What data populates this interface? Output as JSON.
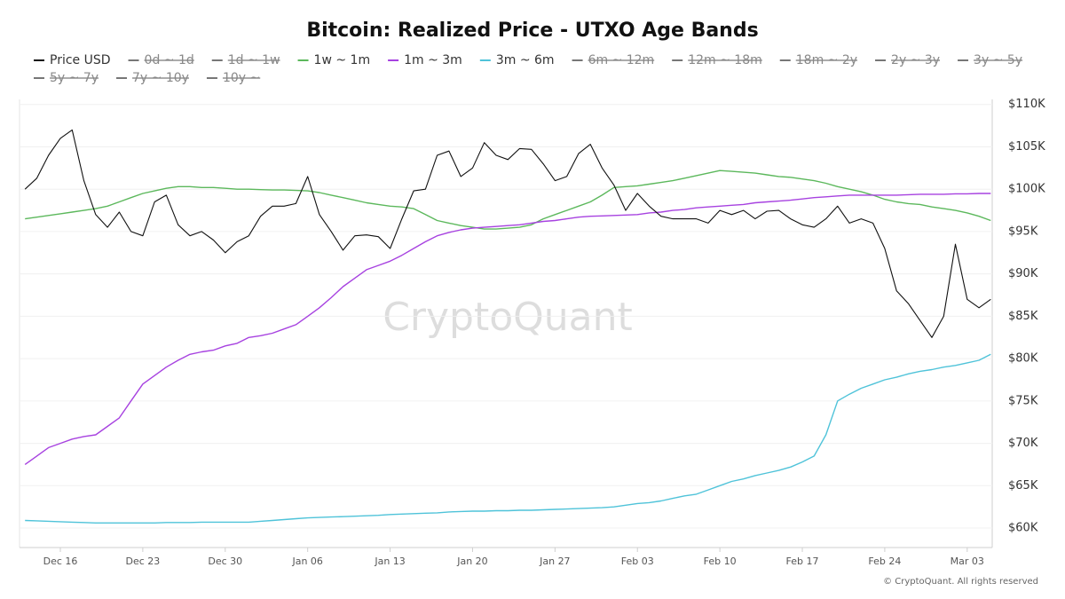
{
  "chart_data": {
    "type": "line",
    "title": "Bitcoin: Realized Price - UTXO Age Bands",
    "watermark": "CryptoQuant",
    "source": "© CryptoQuant. All rights reserved",
    "x": [
      "Dec 13",
      "Dec 14",
      "Dec 15",
      "Dec 16",
      "Dec 17",
      "Dec 18",
      "Dec 19",
      "Dec 20",
      "Dec 21",
      "Dec 22",
      "Dec 23",
      "Dec 24",
      "Dec 25",
      "Dec 26",
      "Dec 27",
      "Dec 28",
      "Dec 29",
      "Dec 30",
      "Dec 31",
      "Jan 01",
      "Jan 02",
      "Jan 03",
      "Jan 04",
      "Jan 05",
      "Jan 06",
      "Jan 07",
      "Jan 08",
      "Jan 09",
      "Jan 10",
      "Jan 11",
      "Jan 12",
      "Jan 13",
      "Jan 14",
      "Jan 15",
      "Jan 16",
      "Jan 17",
      "Jan 18",
      "Jan 19",
      "Jan 20",
      "Jan 21",
      "Jan 22",
      "Jan 23",
      "Jan 24",
      "Jan 25",
      "Jan 26",
      "Jan 27",
      "Jan 28",
      "Jan 29",
      "Jan 30",
      "Jan 31",
      "Feb 01",
      "Feb 02",
      "Feb 03",
      "Feb 04",
      "Feb 05",
      "Feb 06",
      "Feb 07",
      "Feb 08",
      "Feb 09",
      "Feb 10",
      "Feb 11",
      "Feb 12",
      "Feb 13",
      "Feb 14",
      "Feb 15",
      "Feb 16",
      "Feb 17",
      "Feb 18",
      "Feb 19",
      "Feb 20",
      "Feb 21",
      "Feb 22",
      "Feb 23",
      "Feb 24",
      "Feb 25",
      "Feb 26",
      "Feb 27",
      "Feb 28",
      "Mar 01",
      "Mar 02",
      "Mar 03",
      "Mar 04",
      "Mar 05"
    ],
    "xticks": [
      "Dec 16",
      "Dec 23",
      "Dec 30",
      "Jan 06",
      "Jan 13",
      "Jan 20",
      "Jan 27",
      "Feb 03",
      "Feb 10",
      "Feb 17",
      "Feb 24",
      "Mar 03"
    ],
    "ylim": [
      57700,
      110600
    ],
    "yticks": [
      {
        "value": 60000,
        "label": "$60K"
      },
      {
        "value": 65000,
        "label": "$65K"
      },
      {
        "value": 70000,
        "label": "$70K"
      },
      {
        "value": 75000,
        "label": "$75K"
      },
      {
        "value": 80000,
        "label": "$80K"
      },
      {
        "value": 85000,
        "label": "$85K"
      },
      {
        "value": 90000,
        "label": "$90K"
      },
      {
        "value": 95000,
        "label": "$95K"
      },
      {
        "value": 100000,
        "label": "$100K"
      },
      {
        "value": 105000,
        "label": "$105K"
      },
      {
        "value": 110000,
        "label": "$110K"
      }
    ],
    "grid": true,
    "series": [
      {
        "name": "Price USD",
        "color": "#111111",
        "values": [
          100000,
          101300,
          104000,
          106000,
          107000,
          101000,
          97000,
          95500,
          97300,
          95000,
          94500,
          98500,
          99300,
          95800,
          94500,
          95000,
          94000,
          92500,
          93800,
          94500,
          96800,
          98000,
          98000,
          98300,
          101500,
          97000,
          95000,
          92800,
          94500,
          94600,
          94400,
          93000,
          96500,
          99800,
          100000,
          104000,
          104500,
          101500,
          102500,
          105500,
          104000,
          103500,
          104800,
          104700,
          103000,
          101000,
          101500,
          104200,
          105300,
          102500,
          100500,
          97500,
          99500,
          98000,
          96800,
          96500,
          96500,
          96500,
          96000,
          97500,
          97000,
          97500,
          96500,
          97400,
          97500,
          96500,
          95800,
          95500,
          96500,
          98000,
          96000,
          96500,
          96000,
          93000,
          88000,
          86500,
          84500,
          82500,
          85000,
          93500,
          87000,
          86000,
          87000
        ]
      },
      {
        "name": "0d ~ 1d",
        "color": "#555555",
        "hidden": true
      },
      {
        "name": "1d ~ 1w",
        "color": "#555555",
        "hidden": true
      },
      {
        "name": "1w ~ 1m",
        "color": "#5cb85c",
        "values": [
          96500,
          96700,
          96900,
          97100,
          97300,
          97500,
          97700,
          98000,
          98500,
          99000,
          99500,
          99800,
          100100,
          100300,
          100300,
          100200,
          100200,
          100100,
          100000,
          100000,
          99950,
          99900,
          99900,
          99850,
          99800,
          99600,
          99300,
          99000,
          98700,
          98400,
          98200,
          98000,
          97900,
          97700,
          97000,
          96300,
          96000,
          95700,
          95500,
          95300,
          95300,
          95400,
          95500,
          95800,
          96500,
          97000,
          97500,
          98000,
          98500,
          99300,
          100200,
          100300,
          100400,
          100600,
          100800,
          101000,
          101300,
          101600,
          101900,
          102200,
          102100,
          102000,
          101900,
          101700,
          101500,
          101400,
          101200,
          101000,
          100700,
          100300,
          100000,
          99700,
          99300,
          98800,
          98500,
          98300,
          98200,
          97900,
          97700,
          97500,
          97200,
          96800,
          96300
        ]
      },
      {
        "name": "1m ~ 3m",
        "color": "#a742e0",
        "values": [
          67500,
          68500,
          69500,
          70000,
          70500,
          70800,
          71000,
          72000,
          73000,
          75000,
          77000,
          78000,
          79000,
          79800,
          80500,
          80800,
          81000,
          81500,
          81800,
          82500,
          82700,
          83000,
          83500,
          84000,
          85000,
          86000,
          87200,
          88500,
          89500,
          90500,
          91000,
          91500,
          92200,
          93000,
          93800,
          94500,
          94900,
          95200,
          95400,
          95500,
          95600,
          95700,
          95800,
          96000,
          96200,
          96300,
          96500,
          96700,
          96800,
          96850,
          96900,
          96950,
          97000,
          97200,
          97300,
          97500,
          97600,
          97800,
          97900,
          98000,
          98100,
          98200,
          98400,
          98500,
          98600,
          98700,
          98850,
          99000,
          99100,
          99200,
          99300,
          99300,
          99300,
          99300,
          99300,
          99350,
          99400,
          99400,
          99400,
          99450,
          99450,
          99500,
          99500
        ]
      },
      {
        "name": "3m ~ 6m",
        "color": "#4fc3d9",
        "values": [
          60900,
          60850,
          60800,
          60750,
          60700,
          60650,
          60600,
          60600,
          60600,
          60600,
          60600,
          60600,
          60650,
          60650,
          60650,
          60700,
          60700,
          60700,
          60700,
          60700,
          60800,
          60900,
          61000,
          61100,
          61200,
          61250,
          61300,
          61350,
          61400,
          61450,
          61500,
          61600,
          61650,
          61700,
          61750,
          61800,
          61900,
          61950,
          62000,
          62000,
          62050,
          62050,
          62100,
          62100,
          62150,
          62200,
          62250,
          62300,
          62350,
          62400,
          62500,
          62700,
          62900,
          63000,
          63200,
          63500,
          63800,
          64000,
          64500,
          65000,
          65500,
          65800,
          66200,
          66500,
          66800,
          67200,
          67800,
          68500,
          71000,
          75000,
          75800,
          76500,
          77000,
          77500,
          77800,
          78200,
          78500,
          78700,
          79000,
          79200,
          79500,
          79800,
          80500
        ]
      },
      {
        "name": "6m ~ 12m",
        "color": "#555555",
        "hidden": true
      },
      {
        "name": "12m ~ 18m",
        "color": "#555555",
        "hidden": true
      },
      {
        "name": "18m ~ 2y",
        "color": "#555555",
        "hidden": true
      },
      {
        "name": "2y ~ 3y",
        "color": "#555555",
        "hidden": true
      },
      {
        "name": "3y ~ 5y",
        "color": "#555555",
        "hidden": true
      },
      {
        "name": "5y ~ 7y",
        "color": "#555555",
        "hidden": true
      },
      {
        "name": "7y ~ 10y",
        "color": "#555555",
        "hidden": true
      },
      {
        "name": "10y ~",
        "color": "#555555",
        "hidden": true
      }
    ]
  }
}
